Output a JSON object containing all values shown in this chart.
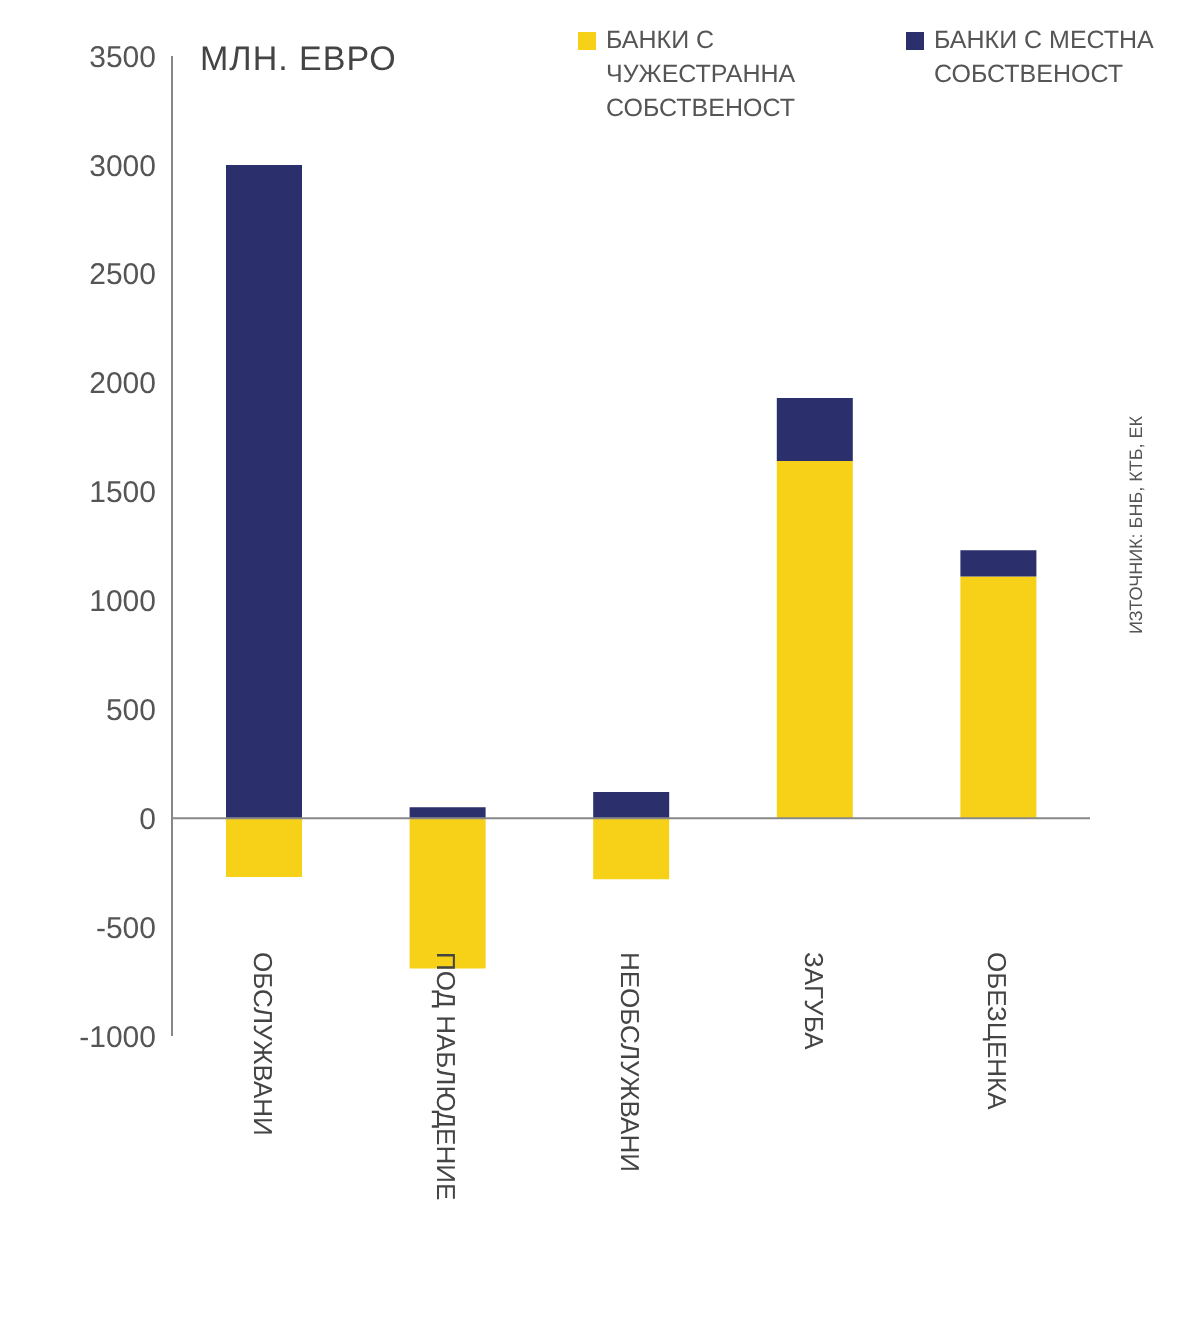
{
  "chart_data": {
    "type": "bar",
    "stacked": true,
    "ylabel": "МЛН. ЕВРО",
    "categories": [
      "ОБСЛУЖВАНИ",
      "ПОД НАБЛЮДЕНИЕ",
      "НЕОБСЛУЖВАНИ",
      "ЗАГУБА",
      "ОБЕЗЦЕНКА"
    ],
    "series": [
      {
        "name": "БАНКИ С ЧУЖЕСТРАННА СОБСТВЕНОСТ",
        "color": "#f7d117",
        "values": [
          -270,
          -690,
          -280,
          1640,
          1110
        ]
      },
      {
        "name": "БАНКИ С МЕСТНА СОБСТВЕНОСТ",
        "color": "#2b2f6b",
        "values": [
          3000,
          50,
          120,
          290,
          120
        ]
      }
    ],
    "ylim": [
      -1000,
      3500
    ],
    "yticks": [
      -1000,
      -500,
      0,
      500,
      1000,
      1500,
      2000,
      2500,
      3000,
      3500
    ],
    "ref_lines": [
      {
        "axis": "y",
        "value": 0,
        "color": "#888888"
      }
    ],
    "legend": "top right",
    "annotations": [
      "ИЗТОЧНИК: БНБ, КТБ, ЕК"
    ]
  }
}
